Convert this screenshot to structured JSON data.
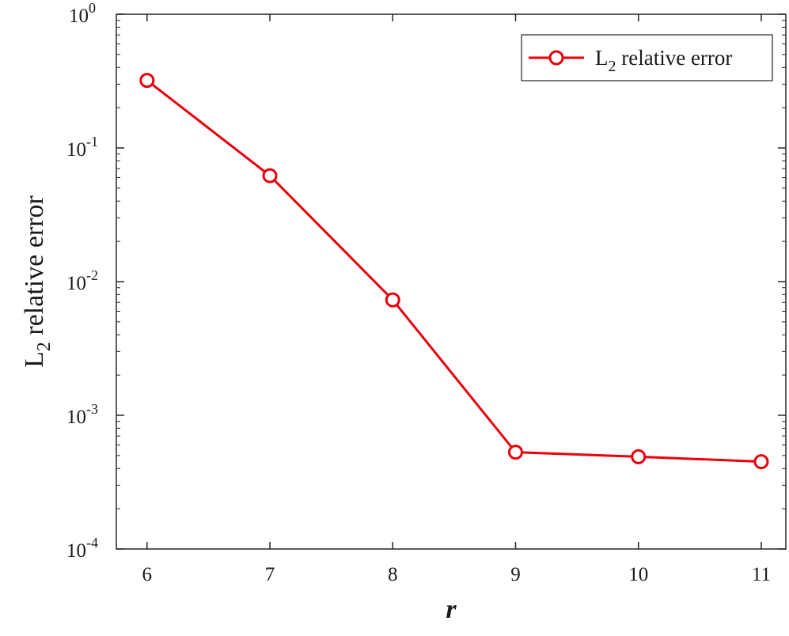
{
  "chart_data": {
    "type": "line",
    "title": "",
    "xlabel": "r",
    "ylabel": {
      "base": "L",
      "subscript": "2",
      "rest": " relative error"
    },
    "yscale": "log",
    "xlim": [
      5.75,
      11.2
    ],
    "ylim": [
      0.0001,
      1
    ],
    "xticks": [
      6,
      7,
      8,
      9,
      10,
      11
    ],
    "yticks": [
      {
        "value": 1,
        "base": "10",
        "exponent": "0"
      },
      {
        "value": 0.1,
        "base": "10",
        "exponent": "-1"
      },
      {
        "value": 0.01,
        "base": "10",
        "exponent": "-2"
      },
      {
        "value": 0.001,
        "base": "10",
        "exponent": "-3"
      },
      {
        "value": 0.0001,
        "base": "10",
        "exponent": "-4"
      }
    ],
    "grid": false,
    "legend_position": "top-right",
    "series": [
      {
        "name": {
          "base": "L",
          "subscript": "2",
          "rest": " relative error"
        },
        "color": "#e8000b",
        "marker": "circle",
        "x": [
          6,
          7,
          8,
          9,
          10,
          11
        ],
        "y": [
          0.32,
          0.062,
          0.0073,
          0.00053,
          0.00049,
          0.00045
        ]
      }
    ]
  }
}
